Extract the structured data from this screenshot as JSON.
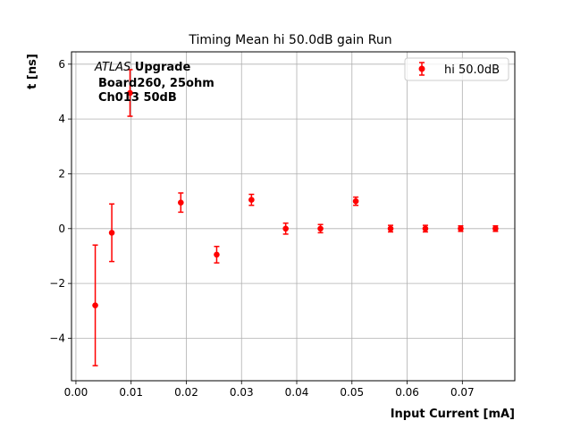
{
  "chart_data": {
    "type": "scatter",
    "title": "Timing Mean hi 50.0dB gain Run",
    "xlabel": "Input Current [mA]",
    "ylabel": "t [ns]",
    "xlim": [
      -0.0008,
      0.0795
    ],
    "ylim": [
      -5.55,
      6.45
    ],
    "xticks": [
      0.0,
      0.01,
      0.02,
      0.03,
      0.04,
      0.05,
      0.06,
      0.07
    ],
    "xtick_labels": [
      "0.00",
      "0.01",
      "0.02",
      "0.03",
      "0.04",
      "0.05",
      "0.06",
      "0.07"
    ],
    "yticks": [
      -4,
      -2,
      0,
      2,
      4,
      6
    ],
    "ytick_labels": [
      "−4",
      "−2",
      "0",
      "2",
      "4",
      "6"
    ],
    "grid": true,
    "legend_position": "top-right",
    "series": [
      {
        "name": "hi 50.0dB",
        "color": "#ff0000",
        "x": [
          0.0035,
          0.0065,
          0.0098,
          0.019,
          0.0255,
          0.0318,
          0.038,
          0.0443,
          0.0507,
          0.057,
          0.0633,
          0.0697,
          0.076
        ],
        "y": [
          -2.8,
          -0.15,
          4.95,
          0.95,
          -0.95,
          1.05,
          0.0,
          0.0,
          1.0,
          0.0,
          0.0,
          0.0,
          0.0
        ],
        "yerr": [
          2.2,
          1.05,
          0.85,
          0.35,
          0.3,
          0.2,
          0.2,
          0.15,
          0.15,
          0.12,
          0.12,
          0.1,
          0.1
        ]
      }
    ],
    "annotation": {
      "italic": "ATLAS",
      "bold_suffix": " Upgrade",
      "line2": "Board260, 25ohm",
      "line3": "Ch013 50dB"
    }
  }
}
